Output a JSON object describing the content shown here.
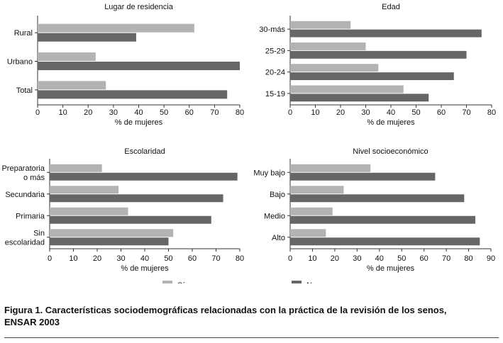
{
  "chart_data": [
    {
      "type": "bar",
      "title": "Lugar de residencia",
      "xlabel": "% de mujeres",
      "ylabel": "",
      "categories": [
        "Rural",
        "Urbano",
        "Total"
      ],
      "series": [
        {
          "name": "Sí",
          "values": [
            62,
            23,
            27
          ]
        },
        {
          "name": "No",
          "values": [
            39,
            80,
            75
          ]
        }
      ],
      "xlim": [
        0,
        80
      ],
      "ticks": [
        0,
        10,
        20,
        30,
        40,
        50,
        60,
        70,
        80
      ],
      "orientation": "horizontal",
      "grid": false
    },
    {
      "type": "bar",
      "title": "Edad",
      "xlabel": "% de mujeres",
      "ylabel": "",
      "categories": [
        "30-más",
        "25-29",
        "20-24",
        "15-19"
      ],
      "series": [
        {
          "name": "Sí",
          "values": [
            24,
            30,
            35,
            45
          ]
        },
        {
          "name": "No",
          "values": [
            76,
            70,
            65,
            55
          ]
        }
      ],
      "xlim": [
        0,
        80
      ],
      "ticks": [
        0,
        10,
        20,
        30,
        40,
        50,
        60,
        70,
        80
      ],
      "orientation": "horizontal",
      "grid": false
    },
    {
      "type": "bar",
      "title": "Escolaridad",
      "xlabel": "% de mujeres",
      "ylabel": "",
      "categories": [
        [
          "Preparatoria",
          "o más"
        ],
        [
          "Secundaria"
        ],
        [
          "Primaria"
        ],
        [
          "Sin",
          "escolaridad"
        ]
      ],
      "series": [
        {
          "name": "Sí",
          "values": [
            22,
            29,
            33,
            52
          ]
        },
        {
          "name": "No",
          "values": [
            79,
            73,
            68,
            50
          ]
        }
      ],
      "xlim": [
        0,
        80
      ],
      "ticks": [
        0,
        10,
        20,
        30,
        40,
        50,
        60,
        70,
        80
      ],
      "orientation": "horizontal",
      "grid": false
    },
    {
      "type": "bar",
      "title": "Nivel socioeconómico",
      "xlabel": "% de mujeres",
      "ylabel": "",
      "categories": [
        "Muy bajo",
        "Bajo",
        "Medio",
        "Alto"
      ],
      "series": [
        {
          "name": "Sí",
          "values": [
            36,
            24,
            19,
            16
          ]
        },
        {
          "name": "No",
          "values": [
            65,
            78,
            83,
            85
          ]
        }
      ],
      "xlim": [
        0,
        90
      ],
      "ticks": [
        0,
        10,
        20,
        30,
        40,
        50,
        60,
        70,
        80,
        90
      ],
      "orientation": "horizontal",
      "grid": false
    }
  ],
  "legend": {
    "placement": "bottom",
    "items": [
      {
        "label": "Sí",
        "color": "#b3b3b3"
      },
      {
        "label": "No",
        "color": "#666666"
      }
    ]
  },
  "colors": {
    "si": "#b3b3b3",
    "no": "#666666",
    "axis": "#333333"
  },
  "caption": {
    "line1": "Figura 1. Características sociodemográficas relacionadas con la práctica de la revisión de los senos,",
    "line2": "ENSAR 2003"
  }
}
